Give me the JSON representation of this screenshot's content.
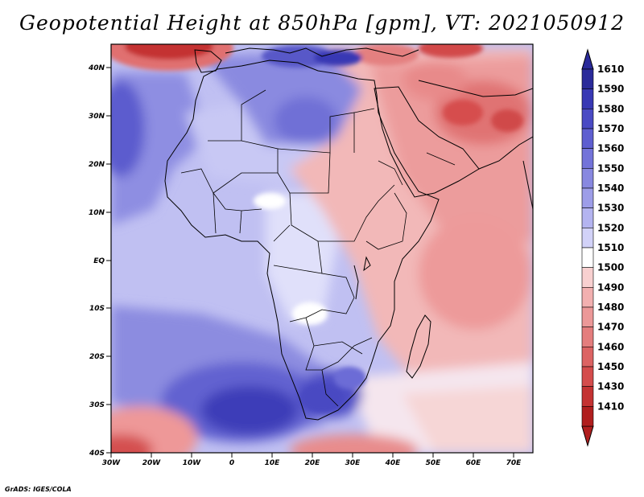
{
  "title": "Geopotential Height at 850hPa [gpm], VT: 2021050912",
  "credit": "GrADS: IGES/COLA",
  "map": {
    "lat_labels": [
      "40N",
      "30N",
      "20N",
      "10N",
      "EQ",
      "10S",
      "20S",
      "30S",
      "40S"
    ],
    "lon_labels": [
      "30W",
      "20W",
      "10W",
      "0",
      "10E",
      "20E",
      "30E",
      "40E",
      "50E",
      "60E",
      "70E"
    ]
  },
  "colorbar": {
    "levels": [
      "1610",
      "1590",
      "1580",
      "1570",
      "1560",
      "1550",
      "1540",
      "1530",
      "1520",
      "1510",
      "1500",
      "1490",
      "1480",
      "1470",
      "1460",
      "1450",
      "1430",
      "1410"
    ],
    "colors": [
      "#2a2a9a",
      "#3838b4",
      "#4a4ac4",
      "#5e5ed0",
      "#7373d9",
      "#8888e0",
      "#9d9de8",
      "#b4b4f0",
      "#d2d2f8",
      "#ffffff",
      "#f8d0d0",
      "#f2b0b0",
      "#ec9898",
      "#e47d7d",
      "#dc6363",
      "#d44c4c",
      "#c43232",
      "#b01e1e"
    ]
  }
}
